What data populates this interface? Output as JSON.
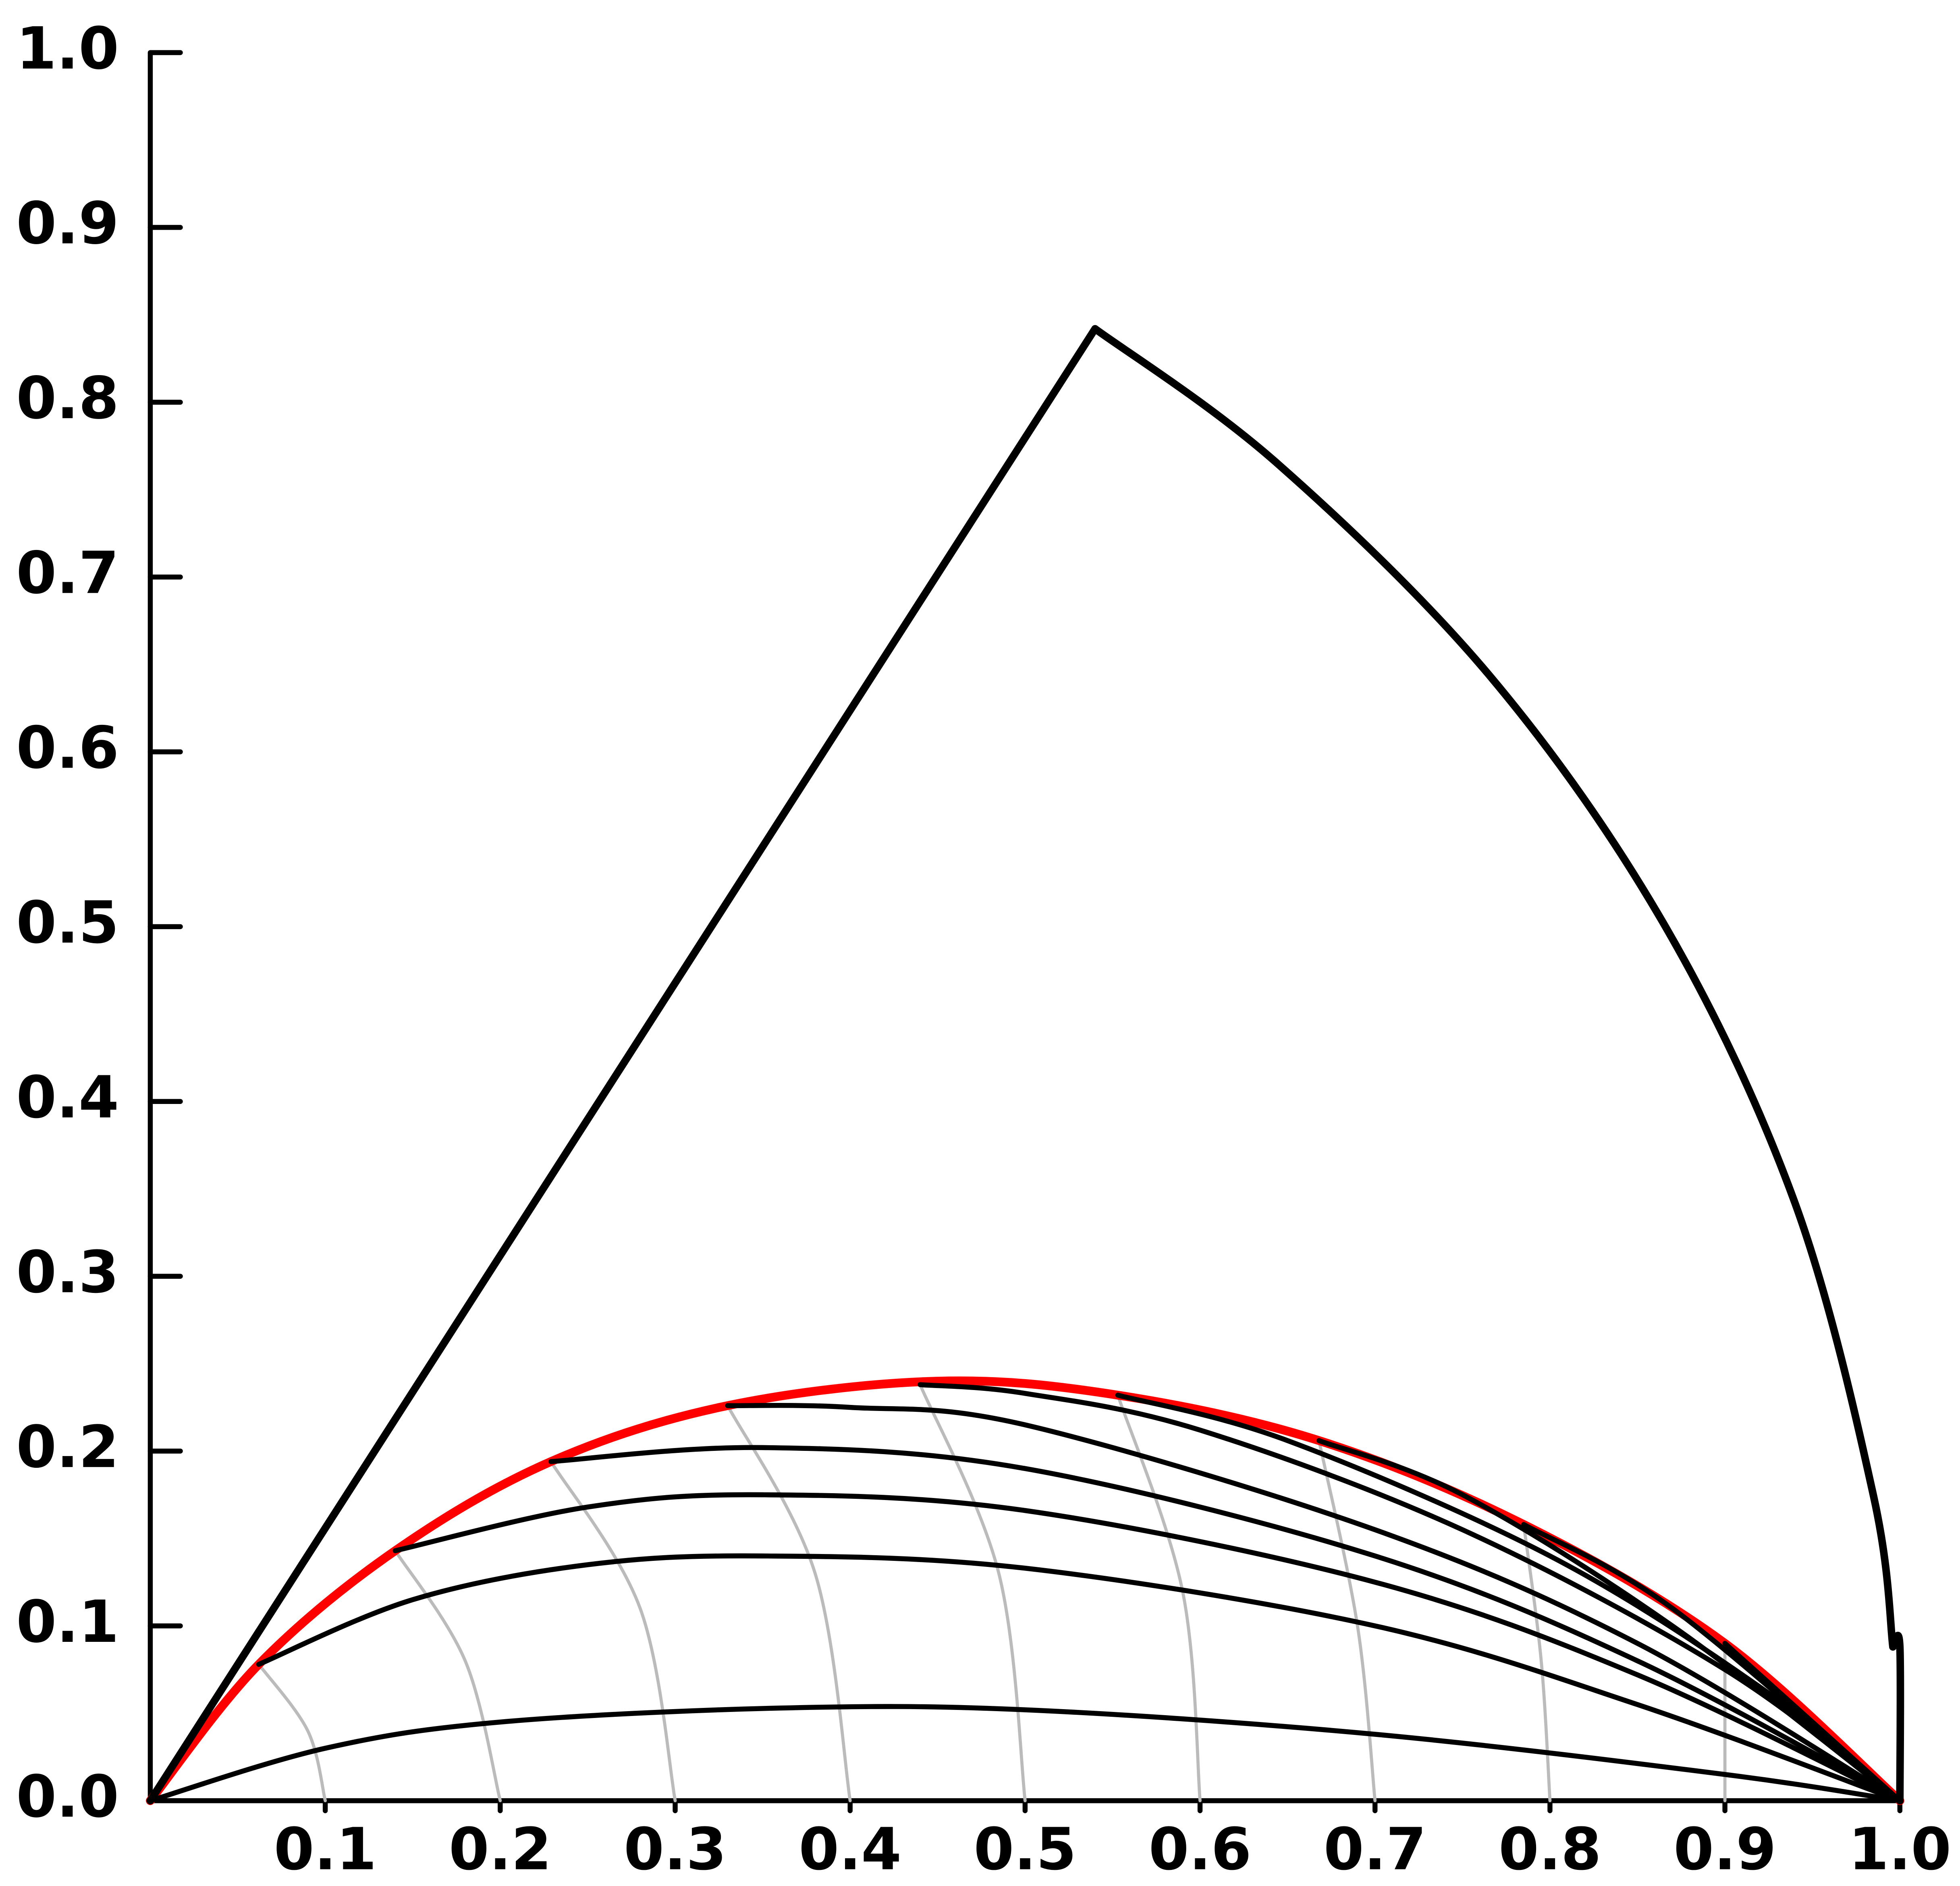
{
  "chart_data": {
    "type": "line",
    "xlim": [
      0,
      1
    ],
    "ylim": [
      0,
      1
    ],
    "xticks": [
      0.1,
      0.2,
      0.3,
      0.4,
      0.5,
      0.6,
      0.7,
      0.8,
      0.9,
      {
        "value": 1,
        "label": "1.0"
      }
    ],
    "yticks": [
      {
        "value": 0,
        "label": "0.0"
      },
      0.1,
      0.2,
      0.3,
      0.4,
      0.5,
      0.6,
      0.7,
      0.8,
      0.9,
      {
        "value": 1,
        "label": "1.0"
      }
    ],
    "series": [
      {
        "color": "#bbbbbb",
        "linewidth": 2.5,
        "x": [
          0.062,
          0.09,
          0.1
        ],
        "values": [
          0.078,
          0.04,
          0
        ]
      },
      {
        "color": "#bbbbbb",
        "linewidth": 2.5,
        "x": [
          0.14,
          0.18,
          0.2
        ],
        "values": [
          0.143,
          0.08,
          0
        ]
      },
      {
        "color": "#bbbbbb",
        "linewidth": 2.5,
        "x": [
          0.229,
          0.28,
          0.3
        ],
        "values": [
          0.194,
          0.11,
          0
        ]
      },
      {
        "color": "#bbbbbb",
        "linewidth": 2.5,
        "x": [
          0.33,
          0.38,
          0.4
        ],
        "values": [
          0.226,
          0.13,
          0
        ]
      },
      {
        "color": "#bbbbbb",
        "linewidth": 2.5,
        "x": [
          0.44,
          0.485,
          0.5
        ],
        "values": [
          0.238,
          0.13,
          0
        ]
      },
      {
        "color": "#bbbbbb",
        "linewidth": 2.5,
        "x": [
          0.553,
          0.59,
          0.6
        ],
        "values": [
          0.232,
          0.12,
          0
        ]
      },
      {
        "color": "#bbbbbb",
        "linewidth": 2.5,
        "x": [
          0.668,
          0.69,
          0.7
        ],
        "values": [
          0.206,
          0.1,
          0
        ]
      },
      {
        "color": "#bbbbbb",
        "linewidth": 2.5,
        "x": [
          0.785,
          0.795,
          0.8
        ],
        "values": [
          0.158,
          0.08,
          0
        ]
      },
      {
        "color": "#bbbbbb",
        "linewidth": 2.5,
        "x": [
          0.9,
          0.9
        ],
        "values": [
          0.09,
          0
        ]
      },
      {
        "color": "#ff0000",
        "linewidth": 7,
        "x": [
          0,
          0.062,
          0.14,
          0.229,
          0.33,
          0.45,
          0.553,
          0.668,
          0.785,
          0.9,
          1
        ],
        "values": [
          0,
          0.078,
          0.143,
          0.194,
          0.226,
          0.24,
          0.232,
          0.206,
          0.158,
          0.09,
          0
        ]
      },
      {
        "color": "#000000",
        "linewidth": 4,
        "x": [
          0,
          0.1,
          0.2,
          0.36,
          0.5,
          0.7,
          0.9,
          1
        ],
        "values": [
          0,
          0.03,
          0.045,
          0.053,
          0.052,
          0.038,
          0.015,
          0
        ]
      },
      {
        "color": "#000000",
        "linewidth": 4,
        "x": [
          0.062,
          0.15,
          0.25,
          0.35,
          0.5,
          0.7,
          0.85,
          1
        ],
        "values": [
          0.078,
          0.115,
          0.135,
          0.14,
          0.133,
          0.1,
          0.055,
          0
        ]
      },
      {
        "color": "#000000",
        "linewidth": 4,
        "x": [
          0.14,
          0.25,
          0.35,
          0.5,
          0.7,
          0.85,
          1
        ],
        "values": [
          0.143,
          0.168,
          0.175,
          0.166,
          0.125,
          0.072,
          0
        ]
      },
      {
        "color": "#000000",
        "linewidth": 4,
        "x": [
          0.229,
          0.35,
          0.5,
          0.7,
          0.85,
          1
        ],
        "values": [
          0.194,
          0.202,
          0.19,
          0.14,
          0.08,
          0
        ]
      },
      {
        "color": "#000000",
        "linewidth": 4,
        "x": [
          0.33,
          0.4,
          0.5,
          0.7,
          0.85,
          1
        ],
        "values": [
          0.226,
          0.225,
          0.215,
          0.155,
          0.09,
          0
        ]
      },
      {
        "color": "#000000",
        "linewidth": 4,
        "x": [
          0.44,
          0.5,
          0.6,
          0.75,
          0.9,
          1
        ],
        "values": [
          0.238,
          0.233,
          0.212,
          0.155,
          0.075,
          0
        ]
      },
      {
        "color": "#000000",
        "linewidth": 4,
        "x": [
          0.553,
          0.65,
          0.8,
          0.92,
          1
        ],
        "values": [
          0.232,
          0.206,
          0.14,
          0.065,
          0
        ]
      },
      {
        "color": "#000000",
        "linewidth": 4,
        "x": [
          0.668,
          0.75,
          0.87,
          1
        ],
        "values": [
          0.206,
          0.175,
          0.1,
          0
        ]
      },
      {
        "color": "#000000",
        "linewidth": 4,
        "x": [
          0.785,
          0.87,
          1
        ],
        "values": [
          0.158,
          0.11,
          0
        ]
      },
      {
        "color": "#000000",
        "linewidth": 4,
        "x": [
          0.9,
          1
        ],
        "values": [
          0.09,
          0
        ]
      },
      {
        "color": "#000000",
        "linewidth": 6,
        "x": [
          0,
          0.54
        ],
        "values": [
          0,
          0.842
        ]
      },
      {
        "color": "#000000",
        "linewidth": 6,
        "x": [
          0.54,
          0.643,
          0.766,
          0.866,
          0.94,
          0.985,
          0.996
        ],
        "values": [
          0.842,
          0.766,
          0.643,
          0.5,
          0.342,
          0.174,
          0.088
        ]
      },
      {
        "color": "#000000",
        "linewidth": 6,
        "x": [
          0.996,
          1,
          1
        ],
        "values": [
          0.088,
          0.088,
          0
        ]
      }
    ]
  }
}
